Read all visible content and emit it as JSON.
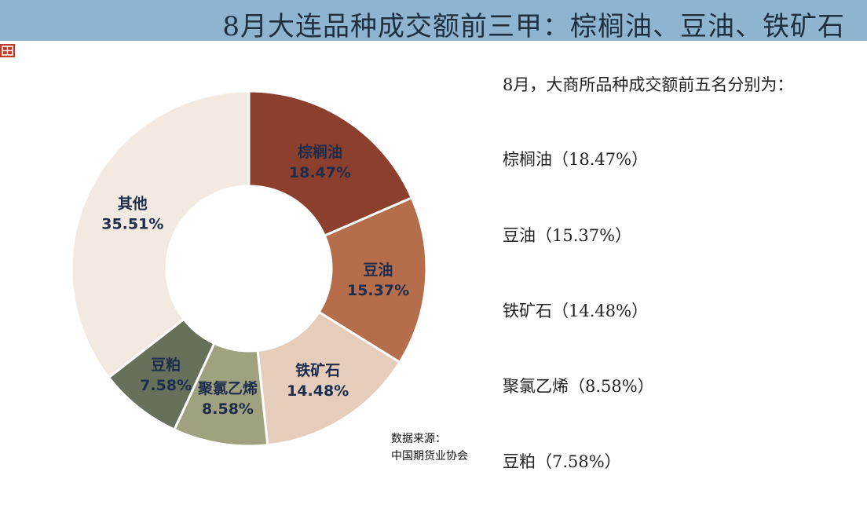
{
  "header": {
    "title": "8月大连品种成交额前三甲：棕榈油、豆油、铁矿石"
  },
  "colors": {
    "header_bg": "#8eb4cf",
    "logo": "#c0392b"
  },
  "chart_data": {
    "type": "pie",
    "donut": true,
    "slices": [
      {
        "name": "棕榈油",
        "label": "18.47%",
        "value": 18.47,
        "color": "#8c3f2d"
      },
      {
        "name": "豆油",
        "label": "15.37%",
        "value": 15.37,
        "color": "#b66d4b"
      },
      {
        "name": "铁矿石",
        "label": "14.48%",
        "value": 14.48,
        "color": "#e6cdbb"
      },
      {
        "name": "聚氯乙烯",
        "label": "8.58%",
        "value": 8.58,
        "color": "#a0a17f"
      },
      {
        "name": "豆粕",
        "label": "7.58%",
        "value": 7.58,
        "color": "#66705a"
      },
      {
        "name": "其他",
        "label": "35.51%",
        "value": 35.51,
        "color": "#f2e9e0"
      }
    ]
  },
  "sidebar": {
    "intro": "8月，大商所品种成交额前五名分别为：",
    "items": [
      "棕榈油（18.47%）",
      "豆油（15.37%）",
      "铁矿石（14.48%）",
      "聚氯乙烯（8.58%）",
      "豆粕（7.58%）"
    ]
  },
  "source": {
    "line1": "数据来源：",
    "line2": "中国期货业协会"
  }
}
